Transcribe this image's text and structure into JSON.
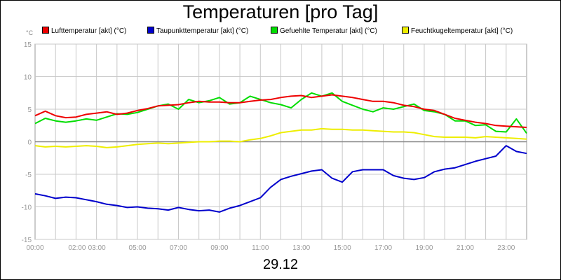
{
  "title": "Temperaturen [pro Tag]",
  "date_label": "29.12",
  "unit_label": "°C",
  "legend": [
    {
      "label": "Lufttemperatur [akt] (°C)",
      "color": "#ee0000"
    },
    {
      "label": "Taupunkttemperatur [akt] (°C)",
      "color": "#0000cc"
    },
    {
      "label": "Gefuehlte Temperatur [akt] (°C)",
      "color": "#00dd00"
    },
    {
      "label": "Feuchtkugeltemperatur [akt] (°C)",
      "color": "#eeee00"
    }
  ],
  "chart_data": {
    "type": "line",
    "title": "Temperaturen [pro Tag]",
    "xlabel": "29.12",
    "ylabel": "°C",
    "xlim": [
      0,
      24
    ],
    "ylim": [
      -15,
      15
    ],
    "y_ticks": [
      15,
      10,
      5,
      0,
      -5,
      -10,
      -15
    ],
    "x_tick_labels": [
      {
        "x": 0,
        "label": "00:00"
      },
      {
        "x": 2,
        "label": "02:00"
      },
      {
        "x": 3,
        "label": "03:00"
      },
      {
        "x": 5,
        "label": "05:00"
      },
      {
        "x": 7,
        "label": "07:00"
      },
      {
        "x": 9,
        "label": "09:00"
      },
      {
        "x": 11,
        "label": "11:00"
      },
      {
        "x": 13,
        "label": "13:00"
      },
      {
        "x": 15,
        "label": "15:00"
      },
      {
        "x": 17,
        "label": "17:00"
      },
      {
        "x": 19,
        "label": "19:00"
      },
      {
        "x": 21,
        "label": "21:00"
      },
      {
        "x": 23,
        "label": "23:00"
      }
    ],
    "grid": true,
    "legend_position": "top",
    "series": [
      {
        "name": "Lufttemperatur [akt] (°C)",
        "color": "#ee0000",
        "x": [
          0,
          0.5,
          1,
          1.5,
          2,
          2.5,
          3,
          3.5,
          4,
          4.5,
          5,
          5.5,
          6,
          6.5,
          7,
          7.5,
          8,
          8.5,
          9,
          9.5,
          10,
          10.5,
          11,
          11.5,
          12,
          12.5,
          13,
          13.5,
          14,
          14.5,
          15,
          15.5,
          16,
          16.5,
          17,
          17.5,
          18,
          18.5,
          19,
          19.5,
          20,
          20.5,
          21,
          21.5,
          22,
          22.5,
          23,
          23.5,
          24
        ],
        "values": [
          4.0,
          4.7,
          4.0,
          3.7,
          3.8,
          4.2,
          4.4,
          4.6,
          4.2,
          4.4,
          4.8,
          5.1,
          5.5,
          5.6,
          5.7,
          6.0,
          6.2,
          6.1,
          6.1,
          6.0,
          6.0,
          6.2,
          6.4,
          6.5,
          6.8,
          7.0,
          7.1,
          6.8,
          7.0,
          7.2,
          7.0,
          6.8,
          6.5,
          6.2,
          6.2,
          6.0,
          5.6,
          5.4,
          5.0,
          4.8,
          4.2,
          3.6,
          3.3,
          3.0,
          2.8,
          2.5,
          2.4,
          2.3,
          2.2
        ]
      },
      {
        "name": "Taupunkttemperatur [akt] (°C)",
        "color": "#0000cc",
        "x": [
          0,
          0.5,
          1,
          1.5,
          2,
          2.5,
          3,
          3.5,
          4,
          4.5,
          5,
          5.5,
          6,
          6.5,
          7,
          7.5,
          8,
          8.5,
          9,
          9.5,
          10,
          10.5,
          11,
          11.5,
          12,
          12.5,
          13,
          13.5,
          14,
          14.5,
          15,
          15.5,
          16,
          16.5,
          17,
          17.5,
          18,
          18.5,
          19,
          19.5,
          20,
          20.5,
          21,
          21.5,
          22,
          22.5,
          23,
          23.5,
          24
        ],
        "values": [
          -8.0,
          -8.3,
          -8.7,
          -8.5,
          -8.6,
          -8.9,
          -9.2,
          -9.6,
          -9.8,
          -10.1,
          -10.0,
          -10.2,
          -10.3,
          -10.5,
          -10.1,
          -10.4,
          -10.6,
          -10.5,
          -10.8,
          -10.2,
          -9.8,
          -9.2,
          -8.6,
          -7.0,
          -5.8,
          -5.3,
          -4.9,
          -4.5,
          -4.3,
          -5.6,
          -6.2,
          -4.6,
          -4.3,
          -4.3,
          -4.3,
          -5.2,
          -5.6,
          -5.8,
          -5.5,
          -4.6,
          -4.2,
          -4.0,
          -3.5,
          -3.0,
          -2.6,
          -2.2,
          -0.6,
          -1.5,
          -1.8
        ]
      },
      {
        "name": "Gefuehlte Temperatur [akt] (°C)",
        "color": "#00dd00",
        "x": [
          0,
          0.5,
          1,
          1.5,
          2,
          2.5,
          3,
          3.5,
          4,
          4.5,
          5,
          5.5,
          6,
          6.5,
          7,
          7.5,
          8,
          8.5,
          9,
          9.5,
          10,
          10.5,
          11,
          11.5,
          12,
          12.5,
          13,
          13.5,
          14,
          14.5,
          15,
          15.5,
          16,
          16.5,
          17,
          17.5,
          18,
          18.5,
          19,
          19.5,
          20,
          20.5,
          21,
          21.5,
          22,
          22.5,
          23,
          23.5,
          24
        ],
        "values": [
          2.8,
          3.6,
          3.2,
          3.0,
          3.2,
          3.5,
          3.3,
          3.8,
          4.3,
          4.2,
          4.5,
          5.0,
          5.5,
          5.8,
          5.0,
          6.5,
          6.0,
          6.3,
          6.8,
          5.8,
          6.0,
          7.0,
          6.5,
          6.0,
          5.7,
          5.2,
          6.5,
          7.5,
          7.0,
          7.5,
          6.2,
          5.6,
          5.0,
          4.6,
          5.2,
          5.0,
          5.4,
          5.8,
          4.8,
          4.6,
          4.2,
          3.2,
          3.2,
          2.5,
          2.6,
          1.6,
          1.5,
          3.5,
          1.3
        ]
      },
      {
        "name": "Feuchtkugeltemperatur [akt] (°C)",
        "color": "#eeee00",
        "x": [
          0,
          0.5,
          1,
          1.5,
          2,
          2.5,
          3,
          3.5,
          4,
          4.5,
          5,
          5.5,
          6,
          6.5,
          7,
          7.5,
          8,
          8.5,
          9,
          9.5,
          10,
          10.5,
          11,
          11.5,
          12,
          12.5,
          13,
          13.5,
          14,
          14.5,
          15,
          15.5,
          16,
          16.5,
          17,
          17.5,
          18,
          18.5,
          19,
          19.5,
          20,
          20.5,
          21,
          21.5,
          22,
          22.5,
          23,
          23.5,
          24
        ],
        "values": [
          -0.6,
          -0.8,
          -0.7,
          -0.8,
          -0.7,
          -0.6,
          -0.7,
          -0.9,
          -0.8,
          -0.6,
          -0.4,
          -0.3,
          -0.2,
          -0.3,
          -0.2,
          -0.1,
          0.0,
          0.0,
          0.1,
          0.1,
          0.0,
          0.3,
          0.5,
          0.9,
          1.4,
          1.6,
          1.8,
          1.8,
          2.0,
          1.9,
          1.9,
          1.8,
          1.8,
          1.7,
          1.6,
          1.5,
          1.5,
          1.4,
          1.1,
          0.8,
          0.7,
          0.7,
          0.7,
          0.6,
          0.8,
          0.7,
          0.6,
          0.5,
          0.4
        ]
      }
    ]
  }
}
